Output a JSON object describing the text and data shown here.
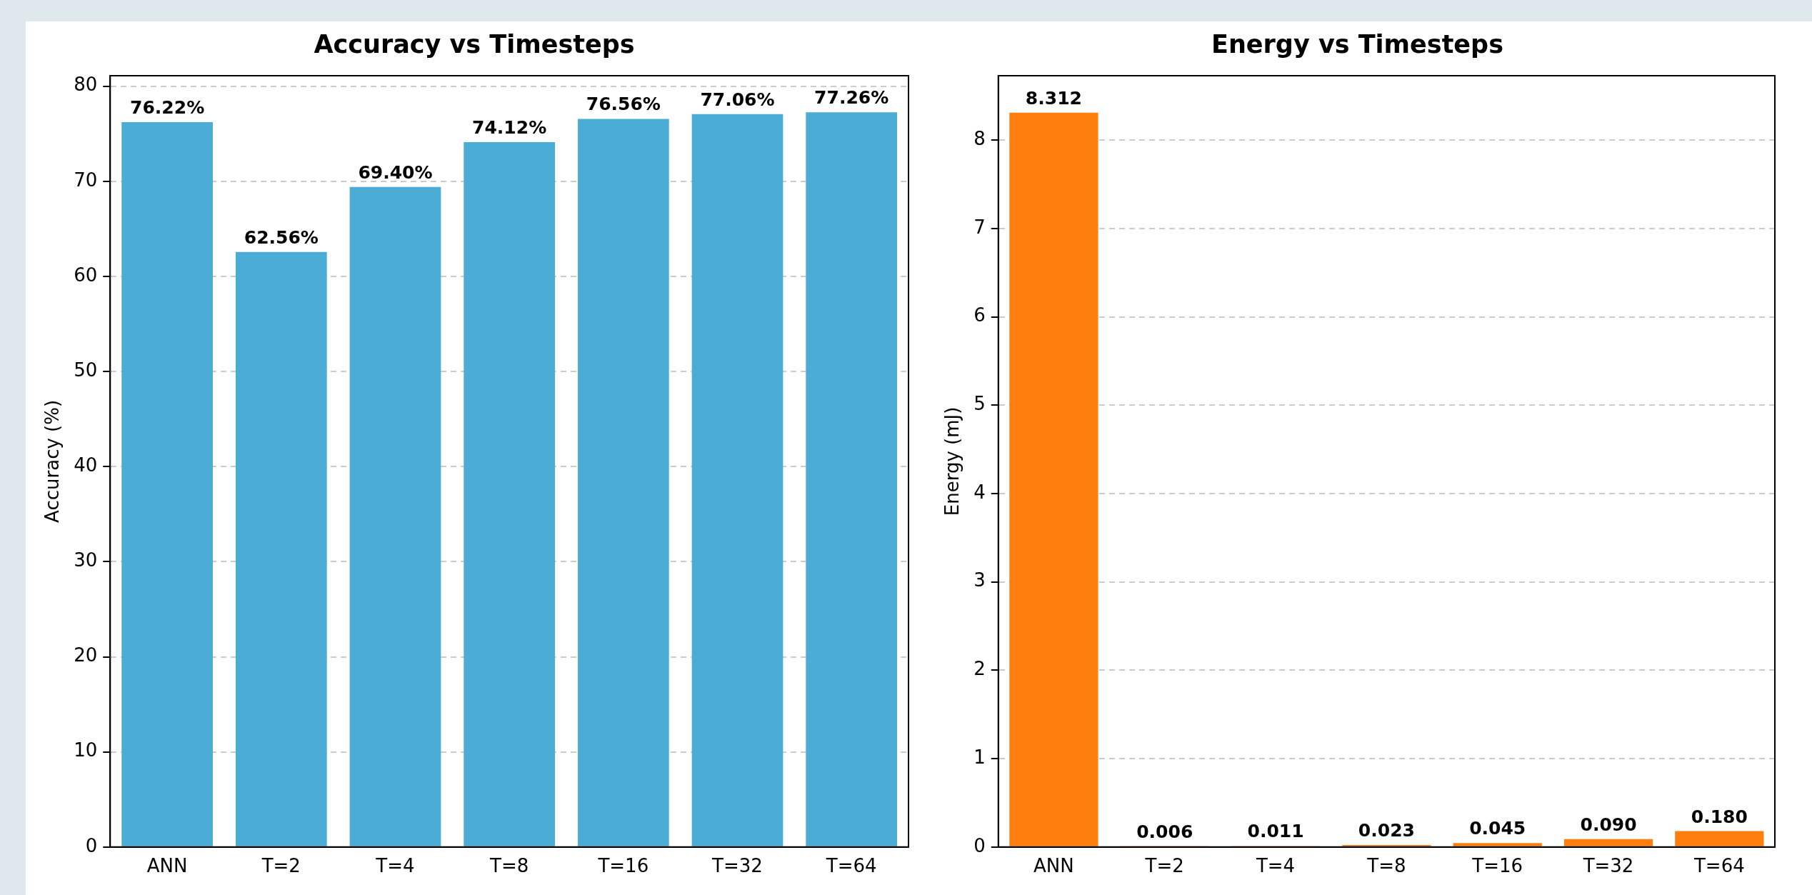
{
  "chart_data": [
    {
      "type": "bar",
      "title": "Accuracy vs Timesteps",
      "ylabel": "Accuracy (%)",
      "categories": [
        "ANN",
        "T=2",
        "T=4",
        "T=8",
        "T=16",
        "T=32",
        "T=64"
      ],
      "values": [
        76.22,
        62.56,
        69.4,
        74.12,
        76.56,
        77.06,
        77.26
      ],
      "color": "#4badd6",
      "ylim": [
        0,
        81.1
      ],
      "yticks": [
        0,
        10,
        20,
        30,
        40,
        50,
        60,
        70,
        80
      ],
      "grid": "y",
      "value_labels": [
        "76.22%",
        "62.56%",
        "69.40%",
        "74.12%",
        "76.56%",
        "77.06%",
        "77.26%"
      ]
    },
    {
      "type": "bar",
      "title": "Energy vs Timesteps",
      "ylabel": "Energy (mJ)",
      "categories": [
        "ANN",
        "T=2",
        "T=4",
        "T=8",
        "T=16",
        "T=32",
        "T=64"
      ],
      "values": [
        8.312,
        0.006,
        0.011,
        0.023,
        0.045,
        0.09,
        0.18
      ],
      "color": "#ff7f0e",
      "ylim": [
        0,
        8.73
      ],
      "yticks": [
        0,
        1,
        2,
        3,
        4,
        5,
        6,
        7,
        8
      ],
      "grid": "y",
      "value_labels": [
        "8.312",
        "0.006",
        "0.011",
        "0.023",
        "0.045",
        "0.090",
        "0.180"
      ]
    }
  ]
}
